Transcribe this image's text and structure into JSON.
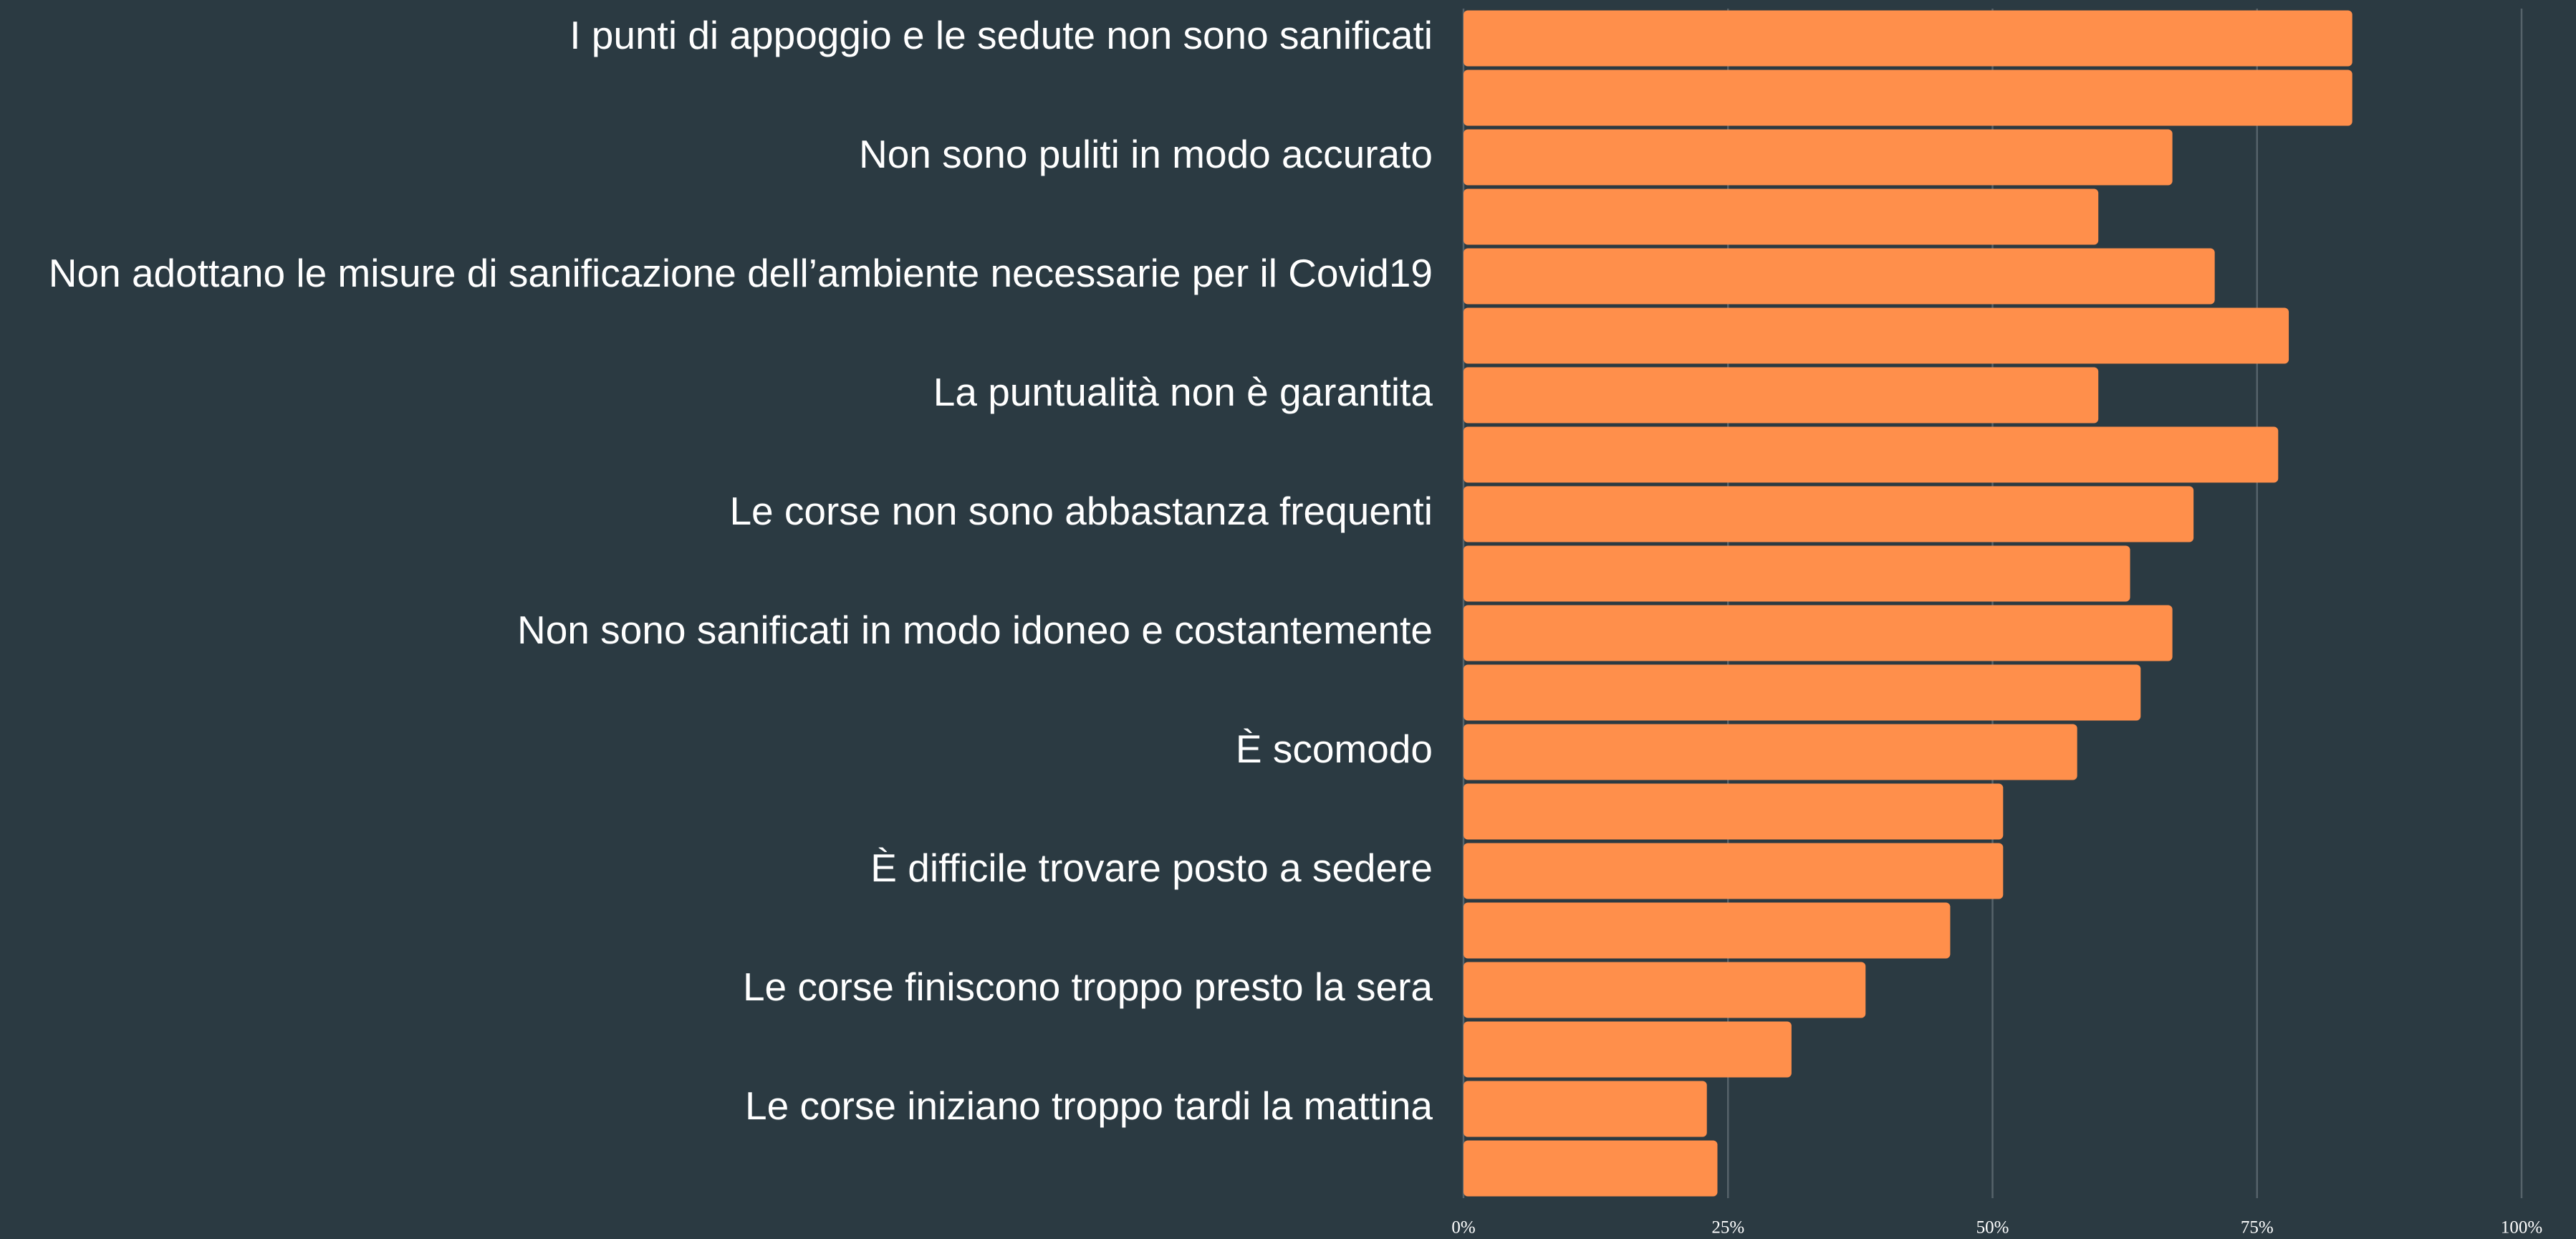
{
  "chart_data": {
    "type": "barh",
    "categories": [
      "I punti di appoggio e le sedute non sono sanificati",
      null,
      "Non sono puliti in modo accurato",
      null,
      "Non adottano le misure di sanificazione dell’ambiente necessarie per il Covid19",
      null,
      "La puntualità non è garantita",
      null,
      "Le corse non sono abbastanza frequenti",
      null,
      "Non sono sanificati in modo idoneo e costantemente",
      null,
      "È scomodo",
      null,
      "È difficile trovare posto a sedere",
      null,
      "Le corse finiscono troppo presto la sera",
      null,
      "Le corse iniziano troppo tardi la mattina",
      null
    ],
    "values": [
      84,
      84,
      67,
      60,
      71,
      78,
      60,
      77,
      69,
      63,
      67,
      64,
      58,
      51,
      51,
      46,
      38,
      31,
      23,
      24
    ],
    "color": "#ff8f4b",
    "xlim": [
      0,
      100
    ],
    "xticks": [
      {
        "value": 0,
        "label": "0%"
      },
      {
        "value": 25,
        "label": "25%"
      },
      {
        "value": 50,
        "label": "50%"
      },
      {
        "value": 75,
        "label": "75%"
      },
      {
        "value": 100,
        "label": "100%"
      }
    ],
    "grid": true
  }
}
